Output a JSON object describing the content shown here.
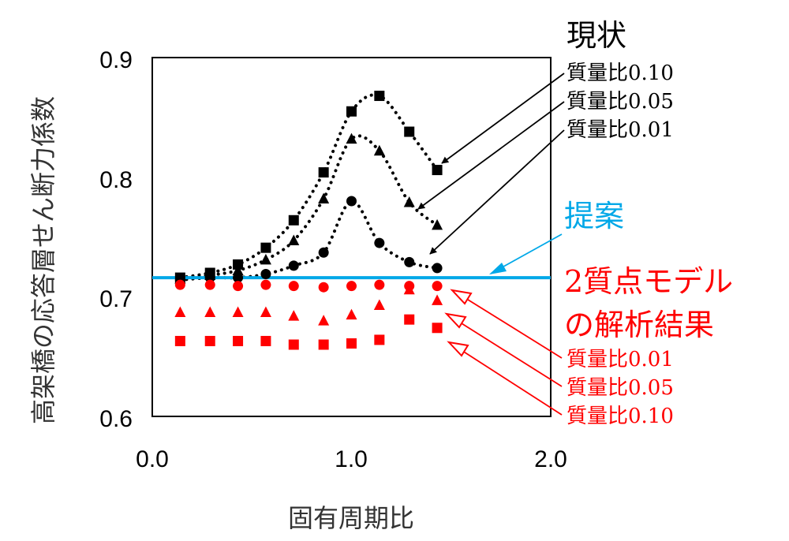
{
  "chart_data": {
    "type": "scatter",
    "xlabel": "固有周期比",
    "ylabel": "高架橋の応答層せん断力係数",
    "xlim": [
      0.0,
      2.0
    ],
    "ylim": [
      0.6,
      0.9
    ],
    "xticks": [
      "0.0",
      "1.0",
      "2.0"
    ],
    "yticks": [
      "0.6",
      "0.7",
      "0.8",
      "0.9"
    ],
    "grid": false,
    "x": [
      0.14,
      0.29,
      0.43,
      0.57,
      0.71,
      0.86,
      1.0,
      1.14,
      1.29,
      1.43
    ],
    "series": [
      {
        "group": "current",
        "mass_ratio": "0.10",
        "marker": "square",
        "color": "#000000",
        "values": [
          0.716,
          0.72,
          0.727,
          0.741,
          0.764,
          0.804,
          0.855,
          0.868,
          0.838,
          0.806
        ]
      },
      {
        "group": "current",
        "mass_ratio": "0.05",
        "marker": "triangle",
        "color": "#000000",
        "values": [
          0.715,
          0.718,
          0.722,
          0.731,
          0.747,
          0.782,
          0.832,
          0.822,
          0.779,
          0.76
        ]
      },
      {
        "group": "current",
        "mass_ratio": "0.01",
        "marker": "circle",
        "color": "#000000",
        "values": [
          0.714,
          0.716,
          0.716,
          0.719,
          0.726,
          0.737,
          0.78,
          0.745,
          0.729,
          0.724
        ]
      },
      {
        "group": "two_mass",
        "mass_ratio": "0.01",
        "marker": "circle",
        "color": "#ff0000",
        "values": [
          0.71,
          0.71,
          0.709,
          0.71,
          0.709,
          0.708,
          0.709,
          0.71,
          0.709,
          0.709
        ]
      },
      {
        "group": "two_mass",
        "mass_ratio": "0.05",
        "marker": "triangle",
        "color": "#ff0000",
        "values": [
          0.687,
          0.687,
          0.687,
          0.687,
          0.684,
          0.68,
          0.685,
          0.693,
          0.706,
          0.697
        ]
      },
      {
        "group": "two_mass",
        "mass_ratio": "0.10",
        "marker": "square",
        "color": "#ff0000",
        "values": [
          0.663,
          0.663,
          0.663,
          0.663,
          0.66,
          0.66,
          0.661,
          0.664,
          0.681,
          0.674
        ]
      }
    ],
    "proposal_line": {
      "y": 0.716,
      "color": "#00a8e8"
    },
    "annotations": {
      "current_title": "現状",
      "current_labels": [
        "質量比0.10",
        "質量比0.05",
        "質量比0.01"
      ],
      "proposal_label": "提案",
      "two_mass_title_line1": "2質点モデル",
      "two_mass_title_line2": "の解析結果",
      "two_mass_labels": [
        "質量比0.01",
        "質量比0.05",
        "質量比0.10"
      ],
      "black": "#000000",
      "red": "#ff0000",
      "blue": "#00a8e8"
    }
  }
}
